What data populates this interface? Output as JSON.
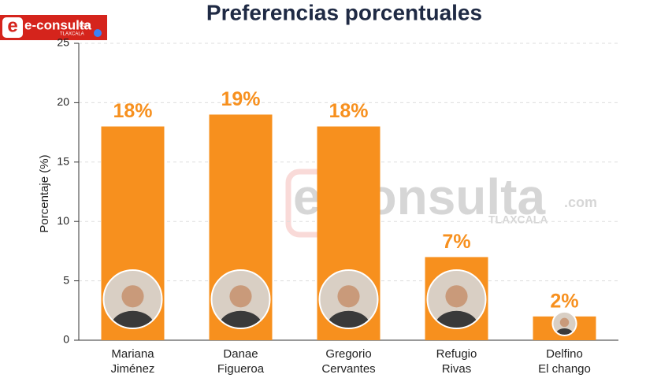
{
  "logo": {
    "text": "e-consulta",
    "suffix": ".com",
    "region": "TLAXCALA"
  },
  "chart_data": {
    "type": "bar",
    "title": "Preferencias porcentuales",
    "y_label": "Porcentaje (%)",
    "categories": [
      [
        "Mariana",
        "Jiménez"
      ],
      [
        "Danae",
        "Figueroa"
      ],
      [
        "Gregorio",
        "Cervantes"
      ],
      [
        "Refugio",
        "Rivas"
      ],
      [
        "Delfino",
        "El chango"
      ]
    ],
    "values": [
      18,
      19,
      18,
      7,
      2
    ],
    "value_labels": [
      "18%",
      "19%",
      "18%",
      "7%",
      "2%"
    ],
    "color": "#f7901e",
    "ylim": [
      0,
      25
    ],
    "yticks": [
      0,
      5,
      10,
      15,
      20,
      25
    ],
    "grid": true
  }
}
